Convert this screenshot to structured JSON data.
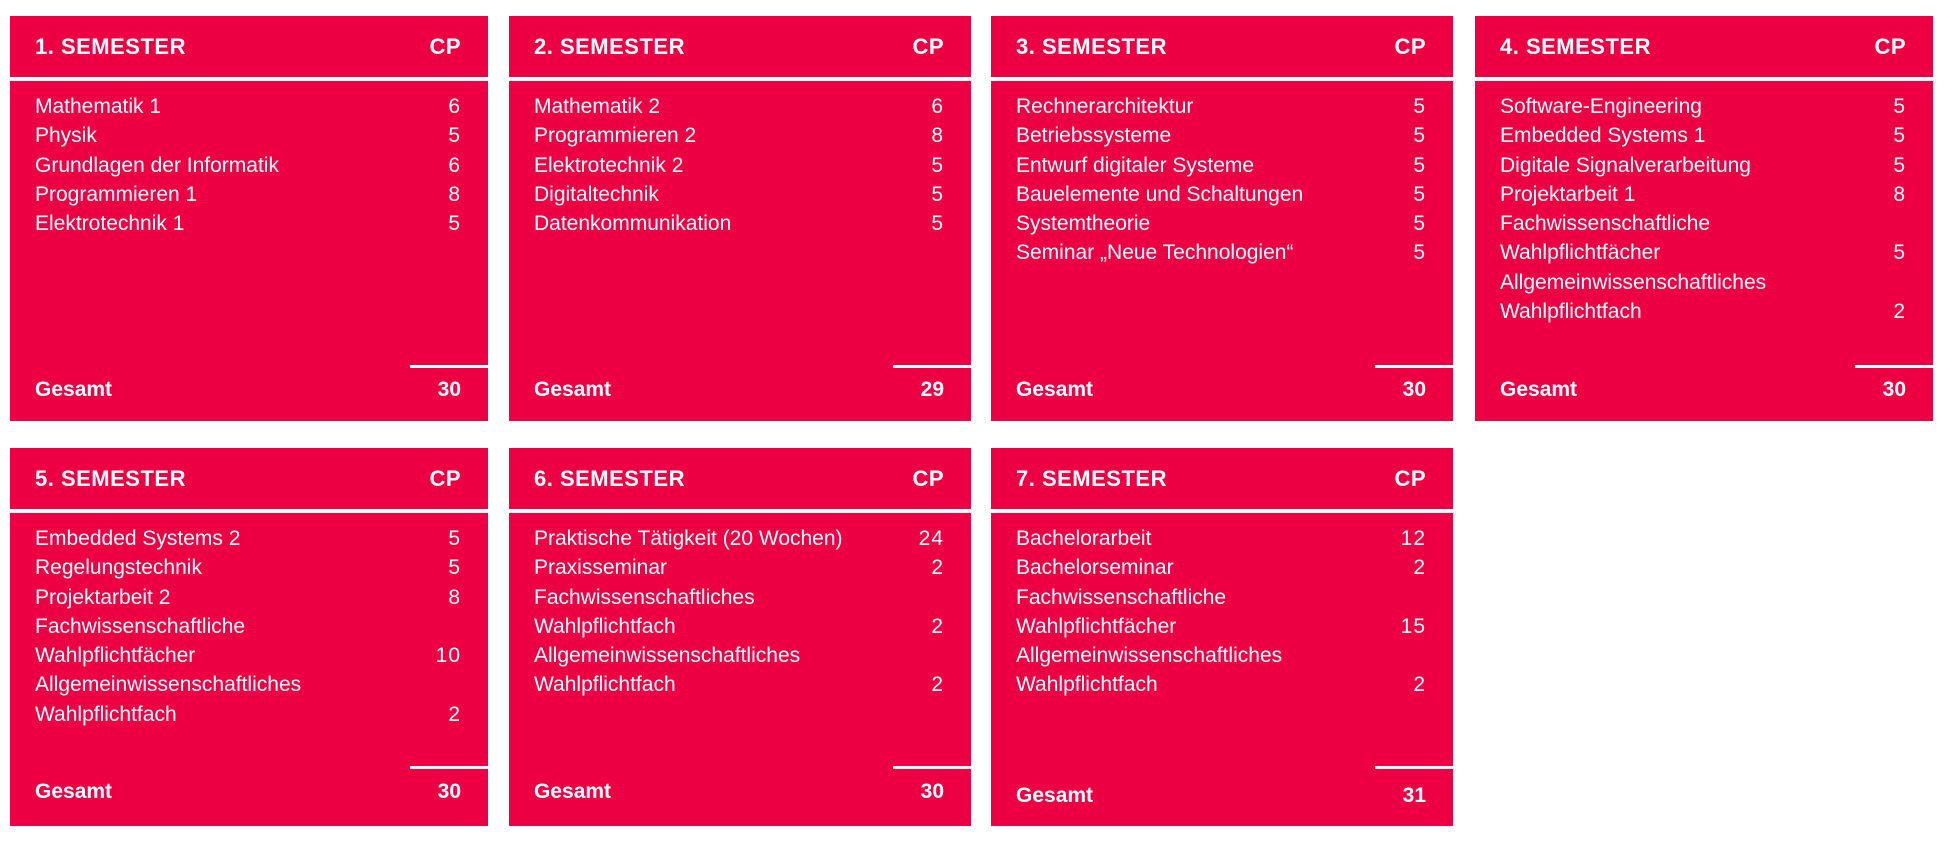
{
  "accent_color": "#ED0043",
  "cp_label": "CP",
  "total_label": "Gesamt",
  "semesters": [
    {
      "title": "1. SEMESTER",
      "total": "30",
      "items": [
        {
          "name": "Mathematik 1",
          "cp": "6"
        },
        {
          "name": "Physik",
          "cp": "5"
        },
        {
          "name": "Grundlagen der Informatik",
          "cp": "6"
        },
        {
          "name": "Programmieren 1",
          "cp": "8"
        },
        {
          "name": "Elektrotechnik 1",
          "cp": "5"
        }
      ]
    },
    {
      "title": "2. SEMESTER",
      "total": "29",
      "items": [
        {
          "name": "Mathematik 2",
          "cp": "6"
        },
        {
          "name": "Programmieren 2",
          "cp": "8"
        },
        {
          "name": "Elektrotechnik 2",
          "cp": "5"
        },
        {
          "name": "Digitaltechnik",
          "cp": "5"
        },
        {
          "name": "Datenkommunikation",
          "cp": "5"
        }
      ]
    },
    {
      "title": "3. SEMESTER",
      "total": "30",
      "items": [
        {
          "name": "Rechnerarchitektur",
          "cp": "5"
        },
        {
          "name": "Betriebssysteme",
          "cp": "5"
        },
        {
          "name": "Entwurf digitaler Systeme",
          "cp": "5"
        },
        {
          "name": "Bauelemente und Schaltungen",
          "cp": "5"
        },
        {
          "name": "Systemtheorie",
          "cp": "5"
        },
        {
          "name": "Seminar „Neue Technologien“",
          "cp": "5"
        }
      ]
    },
    {
      "title": "4. SEMESTER",
      "total": "30",
      "items": [
        {
          "name": "Software-Engineering",
          "cp": "5"
        },
        {
          "name": "Embedded Systems 1",
          "cp": "5"
        },
        {
          "name": "Digitale Signalverarbeitung",
          "cp": "5"
        },
        {
          "name": "Projektarbeit 1",
          "cp": "8"
        },
        {
          "name": "Fachwissenschaftliche",
          "cp": ""
        },
        {
          "name": "Wahlpflichtfächer",
          "cp": "5"
        },
        {
          "name": "Allgemeinwissenschaftliches",
          "cp": ""
        },
        {
          "name": "Wahlpflichtfach",
          "cp": "2"
        }
      ]
    },
    {
      "title": "5. SEMESTER",
      "total": "30",
      "items": [
        {
          "name": "Embedded Systems 2",
          "cp": "5"
        },
        {
          "name": "Regelungstechnik",
          "cp": "5"
        },
        {
          "name": "Projektarbeit 2",
          "cp": "8"
        },
        {
          "name": "Fachwissenschaftliche",
          "cp": ""
        },
        {
          "name": "Wahlpflichtfächer",
          "cp": "10"
        },
        {
          "name": "Allgemeinwissenschaftliches",
          "cp": ""
        },
        {
          "name": "Wahlpflichtfach",
          "cp": "2"
        }
      ]
    },
    {
      "title": "6. SEMESTER",
      "total": "30",
      "items": [
        {
          "name": "Praktische Tätigkeit (20 Wochen)",
          "cp": "24"
        },
        {
          "name": "Praxisseminar",
          "cp": "2"
        },
        {
          "name": "Fachwissenschaftliches",
          "cp": ""
        },
        {
          "name": "Wahlpflichtfach",
          "cp": "2"
        },
        {
          "name": "Allgemeinwissenschaftliches",
          "cp": ""
        },
        {
          "name": "Wahlpflichtfach",
          "cp": "2"
        }
      ]
    },
    {
      "title": "7. SEMESTER",
      "total": "31",
      "items": [
        {
          "name": "Bachelorarbeit",
          "cp": "12"
        },
        {
          "name": "Bachelorseminar",
          "cp": "2"
        },
        {
          "name": "Fachwissenschaftliche",
          "cp": ""
        },
        {
          "name": "Wahlpflichtfächer",
          "cp": "15"
        },
        {
          "name": "Allgemeinwissenschaftliches",
          "cp": ""
        },
        {
          "name": "Wahlpflichtfach",
          "cp": "2"
        }
      ]
    }
  ]
}
